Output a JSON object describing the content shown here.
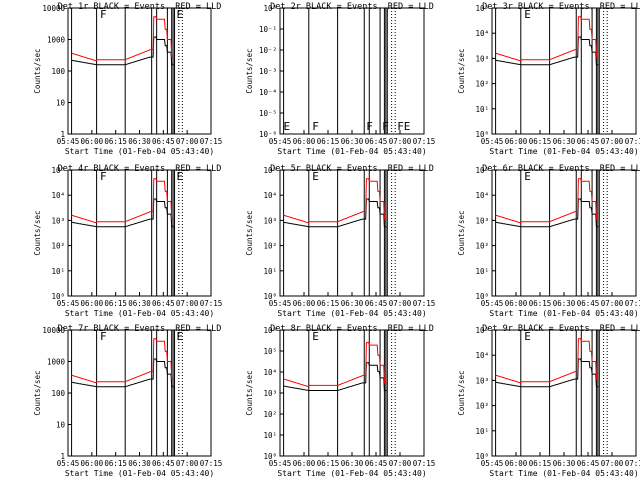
{
  "chart_data": [
    {
      "type": "line",
      "title": "Det 1r BLACK = Events, RED = LLD",
      "xlabel": "Start Time (01-Feb-04 05:43:40)",
      "ylabel": "Counts/sec",
      "x_ticks": [
        "05:45",
        "06:00",
        "06:15",
        "06:30",
        "06:45",
        "07:00",
        "07:15"
      ],
      "y_ticks": [
        "1",
        "10",
        "100",
        "1000",
        "10000"
      ],
      "ylim": [
        1,
        10000
      ],
      "log_y": true,
      "series": [
        {
          "name": "BLACK",
          "color": "#000000",
          "role": "events"
        },
        {
          "name": "RED",
          "color": "#ff0000",
          "role": "lld"
        }
      ],
      "markers": [],
      "flag_labels": [
        "F",
        "E"
      ]
    },
    {
      "type": "line",
      "title": "Det 2r BLACK = Events, RED = LLD",
      "xlabel": "Start Time (01-Feb-04 05:43:40)",
      "ylabel": "Counts/sec",
      "x_ticks": [
        "05:45",
        "06:00",
        "06:15",
        "06:30",
        "06:45",
        "07:00",
        "07:15"
      ],
      "y_ticks": [
        "10⁰",
        "10⁻¹",
        "10⁻²",
        "10⁻³",
        "10⁻⁴",
        "10⁻⁵",
        "10⁻⁶"
      ],
      "ylim": [
        1e-06,
        1
      ],
      "log_y": true,
      "series": [],
      "markers": [],
      "flag_labels": [
        "E",
        "F",
        "F",
        "F",
        "FE"
      ]
    },
    {
      "type": "line",
      "title": "Det 3r BLACK = Events, RED = LLD",
      "xlabel": "Start Time (01-Feb-04 05:43:40)",
      "ylabel": "Counts/sec",
      "x_ticks": [
        "05:45",
        "06:00",
        "06:15",
        "06:30",
        "06:45",
        "07:00",
        "07:15"
      ],
      "y_ticks": [
        "10⁰",
        "10¹",
        "10²",
        "10³",
        "10⁴",
        "10⁵"
      ],
      "ylim": [
        1,
        100000
      ],
      "log_y": true,
      "series": [
        {
          "name": "BLACK",
          "color": "#000000"
        },
        {
          "name": "RED",
          "color": "#ff0000"
        }
      ],
      "markers": [],
      "flag_labels": [
        "E"
      ]
    },
    {
      "type": "line",
      "title": "Det 4r BLACK = Events, RED = LLD",
      "xlabel": "Start Time (01-Feb-04 05:43:40)",
      "ylabel": "Counts/sec",
      "x_ticks": [
        "05:45",
        "06:00",
        "06:15",
        "06:30",
        "06:45",
        "07:00",
        "07:15"
      ],
      "y_ticks": [
        "10⁰",
        "10¹",
        "10²",
        "10³",
        "10⁴",
        "10⁵"
      ],
      "ylim": [
        1,
        100000
      ],
      "log_y": true,
      "series": [
        {
          "name": "BLACK",
          "color": "#000000"
        },
        {
          "name": "RED",
          "color": "#ff0000"
        }
      ],
      "markers": [],
      "flag_labels": [
        "F",
        "E"
      ]
    },
    {
      "type": "line",
      "title": "Det 5r BLACK = Events, RED = LLD",
      "xlabel": "Start Time (01-Feb-04 05:43:40)",
      "ylabel": "Counts/sec",
      "x_ticks": [
        "05:45",
        "06:00",
        "06:15",
        "06:30",
        "06:45",
        "07:00",
        "07:15"
      ],
      "y_ticks": [
        "10⁰",
        "10¹",
        "10²",
        "10³",
        "10⁴",
        "10⁵"
      ],
      "ylim": [
        1,
        100000
      ],
      "log_y": true,
      "series": [
        {
          "name": "BLACK",
          "color": "#000000"
        },
        {
          "name": "RED",
          "color": "#ff0000"
        }
      ],
      "markers": [],
      "flag_labels": [
        "E"
      ]
    },
    {
      "type": "line",
      "title": "Det 6r BLACK = Events, RED = LLD",
      "xlabel": "Start Time (01-Feb-04 05:43:40)",
      "ylabel": "Counts/sec",
      "x_ticks": [
        "05:45",
        "06:00",
        "06:15",
        "06:30",
        "06:45",
        "07:00",
        "07:15"
      ],
      "y_ticks": [
        "10⁰",
        "10¹",
        "10²",
        "10³",
        "10⁴",
        "10⁵"
      ],
      "ylim": [
        1,
        100000
      ],
      "log_y": true,
      "series": [
        {
          "name": "BLACK",
          "color": "#000000"
        },
        {
          "name": "RED",
          "color": "#ff0000"
        }
      ],
      "markers": [],
      "flag_labels": [
        "E"
      ]
    },
    {
      "type": "line",
      "title": "Det 7r BLACK = Events, RED = LLD",
      "xlabel": "Start Time (01-Feb-04 05:43:40)",
      "ylabel": "Counts/sec",
      "x_ticks": [
        "05:45",
        "06:00",
        "06:15",
        "06:30",
        "06:45",
        "07:00",
        "07:15"
      ],
      "y_ticks": [
        "1",
        "10",
        "100",
        "1000",
        "10000"
      ],
      "ylim": [
        1,
        10000
      ],
      "log_y": true,
      "series": [
        {
          "name": "BLACK",
          "color": "#000000"
        },
        {
          "name": "RED",
          "color": "#ff0000"
        }
      ],
      "markers": [],
      "flag_labels": [
        "F",
        "E"
      ]
    },
    {
      "type": "line",
      "title": "Det 8r BLACK = Events, RED = LLD",
      "xlabel": "Start Time (01-Feb-04 05:43:40)",
      "ylabel": "Counts/sec",
      "x_ticks": [
        "05:45",
        "06:00",
        "06:15",
        "06:30",
        "06:45",
        "07:00",
        "07:15"
      ],
      "y_ticks": [
        "10⁰",
        "10¹",
        "10²",
        "10³",
        "10⁴",
        "10⁵",
        "10⁶"
      ],
      "ylim": [
        1,
        1000000
      ],
      "log_y": true,
      "series": [
        {
          "name": "BLACK",
          "color": "#000000"
        },
        {
          "name": "RED",
          "color": "#ff0000"
        }
      ],
      "markers": [],
      "flag_labels": [
        "E"
      ]
    },
    {
      "type": "line",
      "title": "Det 9r BLACK = Events, RED = LLD",
      "xlabel": "Start Time (01-Feb-04 05:43:40)",
      "ylabel": "Counts/sec",
      "x_ticks": [
        "05:45",
        "06:00",
        "06:15",
        "06:30",
        "06:45",
        "07:00",
        "07:15"
      ],
      "y_ticks": [
        "10⁰",
        "10¹",
        "10²",
        "10³",
        "10⁴",
        "10⁵"
      ],
      "ylim": [
        1,
        100000
      ],
      "log_y": true,
      "series": [
        {
          "name": "BLACK",
          "color": "#000000"
        },
        {
          "name": "RED",
          "color": "#ff0000"
        }
      ],
      "markers": [],
      "flag_labels": [
        "E"
      ]
    }
  ]
}
